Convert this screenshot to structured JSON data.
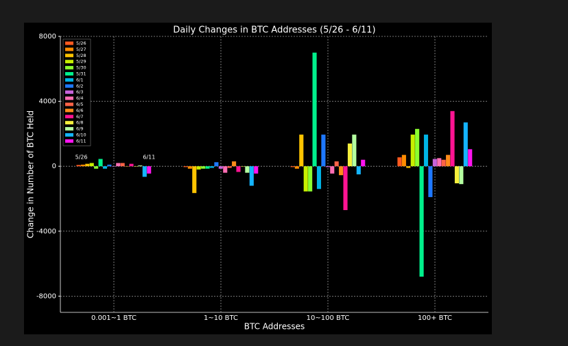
{
  "chart_data": {
    "type": "bar",
    "title": "Daily Changes in BTC Addresses (5/26 - 6/11)",
    "x_label": "BTC Addresses",
    "y_label": "Change in Number of BTC Held",
    "categories": [
      "0.001~1 BTC",
      "1~10 BTC",
      "10~100 BTC",
      "100+ BTC"
    ],
    "ylim": [
      -9000,
      8000
    ],
    "yticks": [
      -8000,
      -4000,
      0,
      4000,
      8000
    ],
    "grid": true,
    "legend": "upper left",
    "annotations": [
      "5/26",
      "6/11"
    ],
    "series": [
      {
        "name": "5/26",
        "color": "#ff5a1f",
        "values": [
          80,
          -50,
          -50,
          550
        ]
      },
      {
        "name": "5/27",
        "color": "#ff8c00",
        "values": [
          100,
          -150,
          -150,
          700
        ]
      },
      {
        "name": "5/28",
        "color": "#ffc400",
        "values": [
          150,
          -1650,
          1950,
          -100
        ]
      },
      {
        "name": "5/29",
        "color": "#c8f000",
        "values": [
          200,
          -200,
          -1550,
          1950
        ]
      },
      {
        "name": "5/30",
        "color": "#8cff2f",
        "values": [
          -150,
          -150,
          -1550,
          2300
        ]
      },
      {
        "name": "5/31",
        "color": "#00f08c",
        "values": [
          450,
          -150,
          7000,
          -6800
        ]
      },
      {
        "name": "6/1",
        "color": "#00b4e6",
        "values": [
          -150,
          -100,
          -1400,
          1950
        ]
      },
      {
        "name": "6/2",
        "color": "#1e78ff",
        "values": [
          100,
          250,
          1950,
          -1900
        ]
      },
      {
        "name": "6/3",
        "color": "#c864dc",
        "values": [
          0,
          -150,
          -50,
          450
        ]
      },
      {
        "name": "6/4",
        "color": "#ff6eb4",
        "values": [
          200,
          -400,
          -450,
          500
        ]
      },
      {
        "name": "6/5",
        "color": "#ff6347",
        "values": [
          200,
          -100,
          300,
          400
        ]
      },
      {
        "name": "6/6",
        "color": "#ff8c1a",
        "values": [
          0,
          300,
          -550,
          700
        ]
      },
      {
        "name": "6/7",
        "color": "#ff1493",
        "values": [
          150,
          -350,
          -2700,
          3400
        ]
      },
      {
        "name": "6/8",
        "color": "#f5f03c",
        "values": [
          0,
          0,
          1400,
          -1050
        ]
      },
      {
        "name": "6/9",
        "color": "#b4ffa0",
        "values": [
          50,
          -400,
          1950,
          -1100
        ]
      },
      {
        "name": "6/10",
        "color": "#14b4ff",
        "values": [
          -650,
          -1200,
          -500,
          2700
        ]
      },
      {
        "name": "6/11",
        "color": "#ff14f0",
        "values": [
          -450,
          -450,
          400,
          1050
        ]
      }
    ]
  }
}
